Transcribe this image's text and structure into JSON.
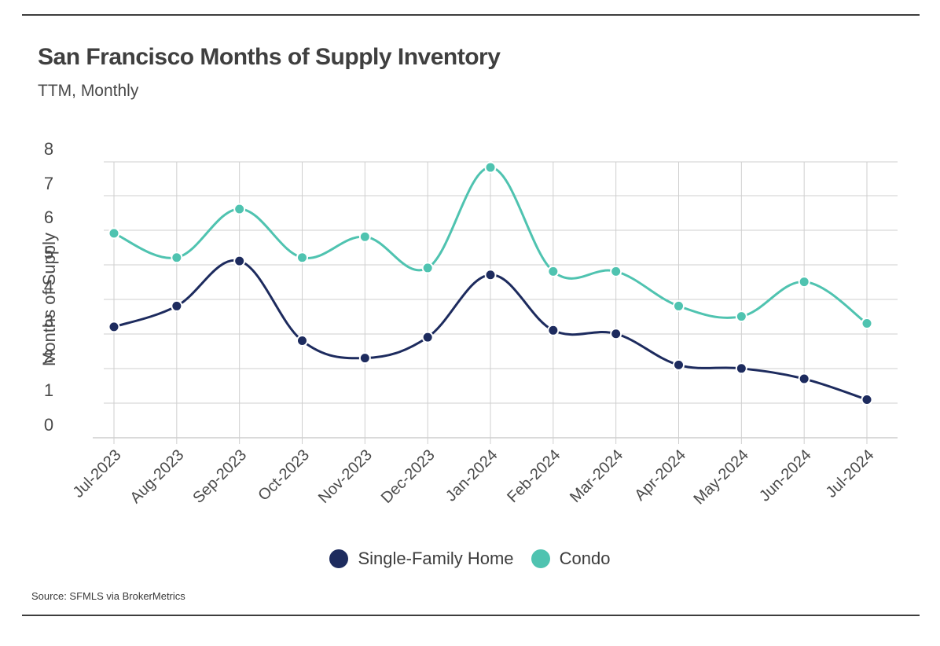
{
  "header": {
    "title": "San Francisco Months of Supply Inventory",
    "subtitle": "TTM, Monthly"
  },
  "footer": {
    "source": "Source:  SFMLS via BrokerMetrics"
  },
  "colors": {
    "single_family": "#1d2b5e",
    "condo": "#4fc3b0",
    "grid": "#cfcfcf",
    "axis_text": "#4a4a4a"
  },
  "chart_data": {
    "type": "line",
    "title": "San Francisco Months of Supply Inventory",
    "subtitle": "TTM, Monthly",
    "xlabel": "",
    "ylabel": "Months of Supply",
    "ylim": [
      0,
      8
    ],
    "yticks": [
      0,
      1,
      2,
      3,
      4,
      5,
      6,
      7,
      8
    ],
    "grid": true,
    "legend_position": "bottom-center",
    "categories": [
      "Jul-2023",
      "Aug-2023",
      "Sep-2023",
      "Oct-2023",
      "Nov-2023",
      "Dec-2023",
      "Jan-2024",
      "Feb-2024",
      "Mar-2024",
      "Apr-2024",
      "May-2024",
      "Jun-2024",
      "Jul-2024"
    ],
    "series": [
      {
        "name": "Single-Family Home",
        "color": "#1d2b5e",
        "values": [
          3.2,
          3.8,
          5.1,
          2.8,
          2.3,
          2.9,
          4.7,
          3.1,
          3.0,
          2.1,
          2.0,
          1.7,
          1.1
        ]
      },
      {
        "name": "Condo",
        "color": "#4fc3b0",
        "values": [
          5.9,
          5.2,
          6.6,
          5.2,
          5.8,
          4.9,
          7.8,
          4.8,
          4.8,
          3.8,
          3.5,
          4.5,
          3.3
        ]
      }
    ]
  }
}
